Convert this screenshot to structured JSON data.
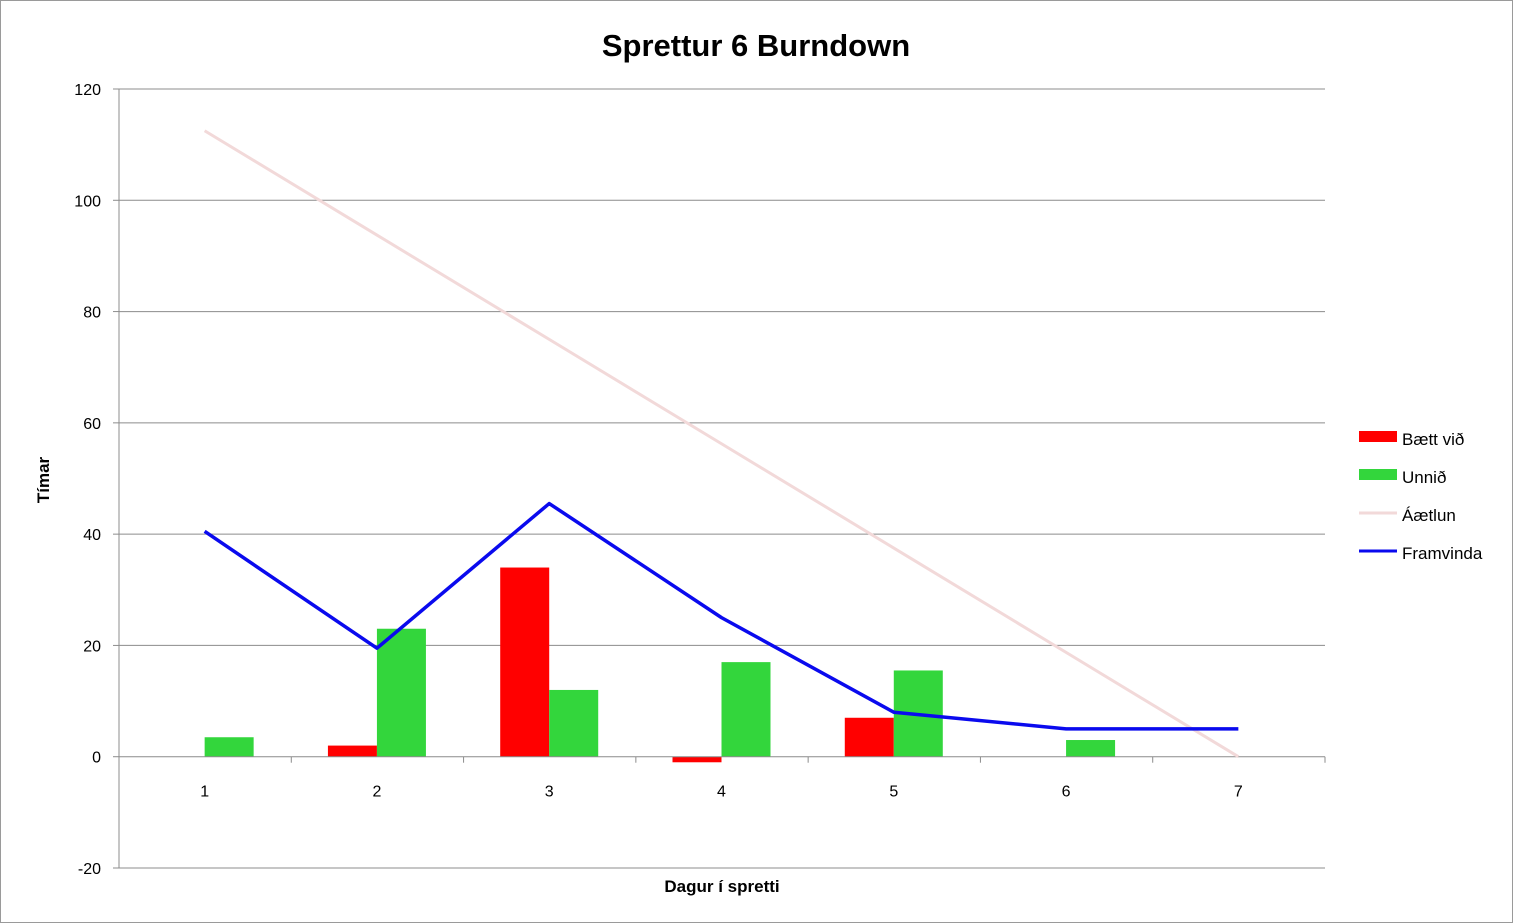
{
  "chart_data": {
    "type": "bar",
    "title": "Sprettur 6 Burndown",
    "xlabel": "Dagur í spretti",
    "ylabel": "Tímar",
    "categories": [
      "1",
      "2",
      "3",
      "4",
      "5",
      "6",
      "7"
    ],
    "ylim": [
      -20,
      120
    ],
    "yticks": [
      -20,
      0,
      20,
      40,
      60,
      80,
      100,
      120
    ],
    "grid": true,
    "legend_position": "right",
    "series": [
      {
        "name": "Bætt við",
        "kind": "bar",
        "color": "#ff0000",
        "values": [
          0,
          2,
          34,
          -1,
          7,
          0,
          0
        ]
      },
      {
        "name": "Unnið",
        "kind": "bar",
        "color": "#33d63c",
        "values": [
          3.5,
          23,
          12,
          17,
          15.5,
          3,
          0
        ]
      },
      {
        "name": "Áætlun",
        "kind": "line",
        "color": "#f2d9d9",
        "values": [
          112.5,
          93.75,
          75,
          56.25,
          37.5,
          18.75,
          0
        ]
      },
      {
        "name": "Framvinda",
        "kind": "line",
        "color": "#0a0aee",
        "values": [
          40.5,
          19.5,
          45.5,
          25,
          8,
          5,
          5
        ]
      }
    ]
  }
}
